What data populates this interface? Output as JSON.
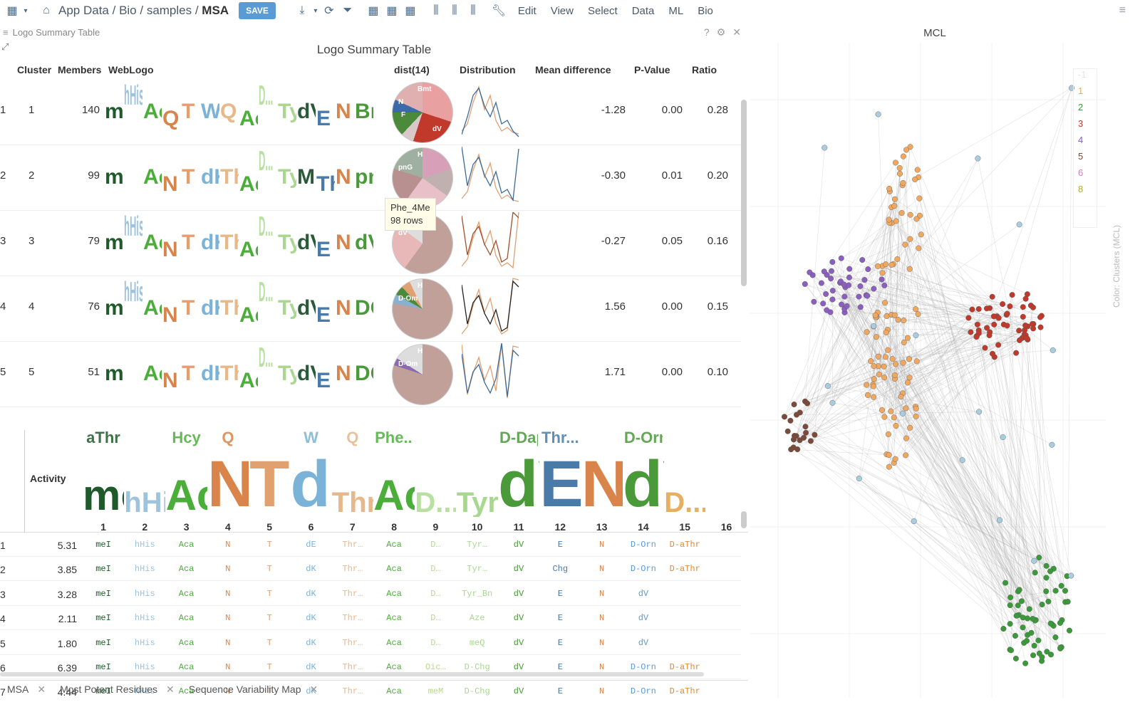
{
  "breadcrumb": {
    "home": "App Data",
    "p1": "Bio",
    "p2": "samples",
    "current": "MSA"
  },
  "toolbar": {
    "save": "SAVE"
  },
  "menu": [
    "Edit",
    "View",
    "Select",
    "Data",
    "ML",
    "Bio"
  ],
  "panel": {
    "caption": "Logo Summary Table",
    "title": "Logo Summary Table"
  },
  "logo_table": {
    "headers": {
      "cluster": "Cluster",
      "members": "Members",
      "weblogo": "WebLogo",
      "dist": "dist(14)",
      "distribution": "Distribution",
      "mean": "Mean difference",
      "pvalue": "P-Value",
      "ratio": "Ratio"
    },
    "rows": [
      {
        "idx": "1",
        "cluster": "1",
        "members": "140",
        "mean": "-1.28",
        "p": "0.00",
        "ratio": "0.28"
      },
      {
        "idx": "2",
        "cluster": "2",
        "members": "99",
        "mean": "-0.30",
        "p": "0.01",
        "ratio": "0.20"
      },
      {
        "idx": "3",
        "cluster": "3",
        "members": "79",
        "mean": "-0.27",
        "p": "0.05",
        "ratio": "0.16"
      },
      {
        "idx": "4",
        "cluster": "4",
        "members": "76",
        "mean": "1.56",
        "p": "0.00",
        "ratio": "0.15"
      },
      {
        "idx": "5",
        "cluster": "5",
        "members": "51",
        "mean": "1.71",
        "p": "0.00",
        "ratio": "0.10"
      }
    ],
    "logo_letters": [
      [
        "meI",
        "hHis",
        "Aca",
        "Q",
        "T",
        "W",
        "Q",
        "Aca",
        "D...",
        "Tyr",
        "dV",
        "E",
        "N",
        "Bmt"
      ],
      [
        "meI",
        "",
        "Aca",
        "N",
        "T",
        "dK",
        "Thr",
        "Aca",
        "D...",
        "Tyr",
        "Mo",
        "Thr",
        "N",
        "pnG"
      ],
      [
        "meI",
        "hHis",
        "Aca",
        "N",
        "T",
        "dK",
        "Thr",
        "Aca",
        "D...",
        "Tyr",
        "dV",
        "E",
        "N",
        "dV"
      ],
      [
        "meI",
        "hHis",
        "Aca",
        "N",
        "T",
        "dK",
        "Thr",
        "Aca",
        "D...",
        "Tyr",
        "dV",
        "E",
        "N",
        "DOm"
      ],
      [
        "meI",
        "",
        "Aca",
        "N",
        "T",
        "dK",
        "Thr",
        "Aca",
        "D...",
        "Tyr",
        "dV",
        "E",
        "N",
        "DOm"
      ]
    ],
    "pie_labels": [
      [
        "Bmt",
        "N",
        "F",
        "dV"
      ],
      [
        "H",
        "pnG"
      ],
      [
        "H",
        "dV"
      ],
      [
        "H",
        "D-Om"
      ],
      [
        "H",
        "D-Om"
      ]
    ]
  },
  "tooltip": {
    "line1": "Phe_4Me",
    "line2": "98 rows"
  },
  "msa": {
    "activity_label": "Activity",
    "positions": [
      "1",
      "2",
      "3",
      "4",
      "5",
      "6",
      "7",
      "8",
      "9",
      "10",
      "11",
      "12",
      "13",
      "14",
      "15",
      "16"
    ],
    "logo": [
      {
        "main": "meI",
        "sub": "aThr",
        "color": "#1e5a2a"
      },
      {
        "main": "hHis",
        "sub": "",
        "color": "#9ec3dd"
      },
      {
        "main": "Aca",
        "sub": "Hcy",
        "color": "#4cae3a"
      },
      {
        "main": "N",
        "sub": "Q",
        "color": "#d9844a"
      },
      {
        "main": "T",
        "sub": "",
        "color": "#e0a070"
      },
      {
        "main": "dK",
        "sub": "W",
        "color": "#7bb3d8"
      },
      {
        "main": "Thr...",
        "sub": "Q",
        "color": "#e6b88a"
      },
      {
        "main": "Aca",
        "sub": "Phe...",
        "color": "#4cae3a"
      },
      {
        "main": "D...",
        "sub": "",
        "color": "#b8e0a0"
      },
      {
        "main": "Tyr...",
        "sub": "",
        "color": "#a8d890"
      },
      {
        "main": "dV",
        "sub": "D-Dap",
        "color": "#4a9a3a"
      },
      {
        "main": "E",
        "sub": "Thr...",
        "color": "#4a7aa8"
      },
      {
        "main": "N",
        "sub": "",
        "color": "#d9844a"
      },
      {
        "main": "dV",
        "sub": "D-Orn",
        "color": "#4a9a3a"
      },
      {
        "main": "D...",
        "sub": "",
        "color": "#e6b060"
      },
      {
        "main": "",
        "sub": "",
        "color": "#999"
      }
    ],
    "rows": [
      {
        "n": "1",
        "act": "5.31",
        "cells": [
          "meI",
          "hHis",
          "Aca",
          "N",
          "T",
          "dE",
          "Thr…",
          "Aca",
          "D…",
          "Tyr…",
          "dV",
          "E",
          "N",
          "D-Orn",
          "D-aThr",
          ""
        ]
      },
      {
        "n": "2",
        "act": "3.85",
        "cells": [
          "meI",
          "hHis",
          "Aca",
          "N",
          "T",
          "dK",
          "Thr…",
          "Aca",
          "D…",
          "Tyr…",
          "dV",
          "Chg",
          "N",
          "D-Orn",
          "D-aThr",
          ""
        ]
      },
      {
        "n": "3",
        "act": "3.28",
        "cells": [
          "meI",
          "hHis",
          "Aca",
          "N",
          "T",
          "dK",
          "Thr…",
          "Aca",
          "D…",
          "Tyr_Bn",
          "dV",
          "E",
          "N",
          "dV",
          "",
          ""
        ]
      },
      {
        "n": "4",
        "act": "2.11",
        "cells": [
          "meI",
          "hHis",
          "Aca",
          "N",
          "T",
          "dK",
          "Thr…",
          "Aca",
          "D…",
          "Aze",
          "dV",
          "E",
          "N",
          "dV",
          "",
          ""
        ]
      },
      {
        "n": "5",
        "act": "1.80",
        "cells": [
          "meI",
          "hHis",
          "Aca",
          "N",
          "T",
          "dK",
          "Thr…",
          "Aca",
          "D…",
          "meQ",
          "dV",
          "E",
          "N",
          "dV",
          "",
          ""
        ]
      },
      {
        "n": "6",
        "act": "6.39",
        "cells": [
          "meI",
          "hHis",
          "Aca",
          "N",
          "T",
          "dK",
          "Thr…",
          "Aca",
          "Oic…",
          "D-Chg",
          "dV",
          "E",
          "N",
          "D-Orn",
          "D-aThr",
          ""
        ]
      },
      {
        "n": "7",
        "act": "4.44",
        "cells": [
          "meI",
          "hHis",
          "Aca",
          "N",
          "T",
          "dK",
          "Thr…",
          "Aca",
          "meM",
          "D-Chg",
          "dV",
          "E",
          "N",
          "D-Orn",
          "D-aThr",
          ""
        ]
      }
    ],
    "cell_colors": [
      "#1e5a2a",
      "#9ec3dd",
      "#4cae3a",
      "#d9844a",
      "#e0a070",
      "#7bb3d8",
      "#e6b88a",
      "#4cae3a",
      "#b8d890",
      "#a8d890",
      "#4a9a3a",
      "#4a7aa8",
      "#d9844a",
      "#5b9bd5",
      "#e08a3a",
      "#999"
    ]
  },
  "tabs": [
    "MSA",
    "Most Potent Residues",
    "Sequence Variability Map"
  ],
  "mcl": {
    "title": "MCL",
    "legend": [
      {
        "label": "-1",
        "color": "#dde6ee"
      },
      {
        "label": "1",
        "color": "#f0a860"
      },
      {
        "label": "2",
        "color": "#3a9a3a"
      },
      {
        "label": "3",
        "color": "#c0392b"
      },
      {
        "label": "4",
        "color": "#8a5fc0"
      },
      {
        "label": "5",
        "color": "#7a4a3a"
      },
      {
        "label": "6",
        "color": "#d080c0"
      },
      {
        "label": "8",
        "color": "#b0b030"
      }
    ],
    "axis_label": "Color: Clusters (MCL)"
  }
}
